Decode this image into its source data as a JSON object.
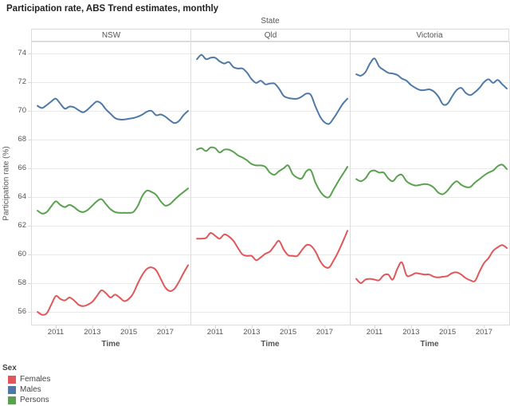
{
  "title": "Participation rate, ABS Trend estimates, monthly",
  "facet": {
    "strip_title": "State"
  },
  "legend": {
    "title": "Sex",
    "items": [
      {
        "label": "Females",
        "color": "#e15759"
      },
      {
        "label": "Males",
        "color": "#4e79a7"
      },
      {
        "label": "Persons",
        "color": "#59a14f"
      }
    ]
  },
  "chart_data": {
    "type": "line",
    "title": "Participation rate, ABS Trend estimates, monthly",
    "xlabel": "Time",
    "ylabel": "Participation rate (%)",
    "grid": true,
    "legend_position": "bottom-left",
    "xlim": [
      2009.6,
      2018.4
    ],
    "ylim": [
      55.0,
      74.8
    ],
    "x_ticks": [
      2011,
      2013,
      2015,
      2017
    ],
    "y_ticks": [
      56,
      58,
      60,
      62,
      64,
      66,
      68,
      70,
      72,
      74
    ],
    "x": [
      2010.0,
      2010.25,
      2010.5,
      2010.75,
      2011.0,
      2011.25,
      2011.5,
      2011.75,
      2012.0,
      2012.25,
      2012.5,
      2012.75,
      2013.0,
      2013.25,
      2013.5,
      2013.75,
      2014.0,
      2014.25,
      2014.5,
      2014.75,
      2015.0,
      2015.25,
      2015.5,
      2015.75,
      2016.0,
      2016.25,
      2016.5,
      2016.75,
      2017.0,
      2017.25,
      2017.5,
      2017.75,
      2018.0,
      2018.25
    ],
    "panels": [
      {
        "state": "NSW",
        "series": [
          {
            "name": "Females",
            "values": [
              56.0,
              55.8,
              55.9,
              56.5,
              57.1,
              56.9,
              56.8,
              57.0,
              56.8,
              56.5,
              56.4,
              56.5,
              56.7,
              57.1,
              57.5,
              57.3,
              57.0,
              57.2,
              57.0,
              56.75,
              56.9,
              57.3,
              58.0,
              58.6,
              59.0,
              59.1,
              58.9,
              58.3,
              57.7,
              57.45,
              57.6,
              58.1,
              58.7,
              59.25
            ]
          },
          {
            "name": "Males",
            "values": [
              70.35,
              70.2,
              70.4,
              70.65,
              70.85,
              70.5,
              70.15,
              70.3,
              70.25,
              70.05,
              69.9,
              70.1,
              70.4,
              70.65,
              70.5,
              70.1,
              69.8,
              69.5,
              69.4,
              69.4,
              69.45,
              69.5,
              69.6,
              69.75,
              69.95,
              70.0,
              69.7,
              69.75,
              69.6,
              69.35,
              69.15,
              69.3,
              69.7,
              70.0
            ]
          },
          {
            "name": "Persons",
            "values": [
              63.05,
              62.85,
              62.95,
              63.35,
              63.7,
              63.45,
              63.3,
              63.45,
              63.3,
              63.05,
              62.95,
              63.1,
              63.4,
              63.7,
              63.85,
              63.5,
              63.15,
              62.95,
              62.9,
              62.9,
              62.9,
              62.95,
              63.4,
              64.1,
              64.45,
              64.35,
              64.15,
              63.7,
              63.4,
              63.5,
              63.8,
              64.1,
              64.35,
              64.6
            ]
          }
        ]
      },
      {
        "state": "Qld",
        "series": [
          {
            "name": "Females",
            "values": [
              61.1,
              61.1,
              61.15,
              61.5,
              61.3,
              61.1,
              61.4,
              61.25,
              60.95,
              60.45,
              60.0,
              59.9,
              59.9,
              59.6,
              59.8,
              60.05,
              60.2,
              60.6,
              60.95,
              60.35,
              59.95,
              59.9,
              59.9,
              60.3,
              60.65,
              60.6,
              60.2,
              59.55,
              59.15,
              59.1,
              59.6,
              60.2,
              60.9,
              61.65
            ]
          },
          {
            "name": "Males",
            "values": [
              73.6,
              73.9,
              73.6,
              73.7,
              73.7,
              73.45,
              73.3,
              73.4,
              73.05,
              72.95,
              72.95,
              72.65,
              72.2,
              71.95,
              72.1,
              71.85,
              71.9,
              71.9,
              71.55,
              71.05,
              70.9,
              70.85,
              70.85,
              71.0,
              71.2,
              71.1,
              70.3,
              69.6,
              69.2,
              69.1,
              69.5,
              70.0,
              70.5,
              70.85
            ]
          },
          {
            "name": "Persons",
            "values": [
              67.3,
              67.4,
              67.2,
              67.45,
              67.4,
              67.1,
              67.3,
              67.3,
              67.15,
              66.9,
              66.75,
              66.55,
              66.3,
              66.2,
              66.2,
              66.1,
              65.7,
              65.55,
              65.8,
              66.0,
              66.2,
              65.6,
              65.35,
              65.3,
              65.8,
              65.85,
              65.0,
              64.4,
              64.05,
              64.0,
              64.55,
              65.1,
              65.6,
              66.1
            ]
          }
        ]
      },
      {
        "state": "Victoria",
        "series": [
          {
            "name": "Females",
            "values": [
              58.3,
              58.0,
              58.25,
              58.3,
              58.25,
              58.2,
              58.55,
              58.6,
              58.25,
              59.0,
              59.45,
              58.55,
              58.55,
              58.7,
              58.65,
              58.6,
              58.6,
              58.45,
              58.4,
              58.45,
              58.5,
              58.7,
              58.75,
              58.6,
              58.35,
              58.2,
              58.15,
              58.8,
              59.4,
              59.75,
              60.25,
              60.5,
              60.65,
              60.45
            ]
          },
          {
            "name": "Males",
            "values": [
              72.55,
              72.45,
              72.7,
              73.3,
              73.65,
              73.1,
              72.85,
              72.65,
              72.6,
              72.5,
              72.25,
              72.1,
              71.8,
              71.6,
              71.45,
              71.45,
              71.5,
              71.35,
              71.0,
              70.45,
              70.5,
              71.0,
              71.45,
              71.6,
              71.25,
              71.1,
              71.3,
              71.6,
              72.0,
              72.2,
              71.95,
              72.15,
              71.85,
              71.55
            ]
          },
          {
            "name": "Persons",
            "values": [
              65.25,
              65.1,
              65.3,
              65.75,
              65.85,
              65.7,
              65.7,
              65.3,
              65.1,
              65.45,
              65.55,
              65.1,
              64.9,
              64.8,
              64.85,
              64.9,
              64.85,
              64.65,
              64.3,
              64.2,
              64.45,
              64.85,
              65.1,
              64.85,
              64.7,
              64.7,
              65.0,
              65.25,
              65.5,
              65.7,
              65.85,
              66.15,
              66.25,
              65.95
            ]
          }
        ]
      }
    ]
  }
}
